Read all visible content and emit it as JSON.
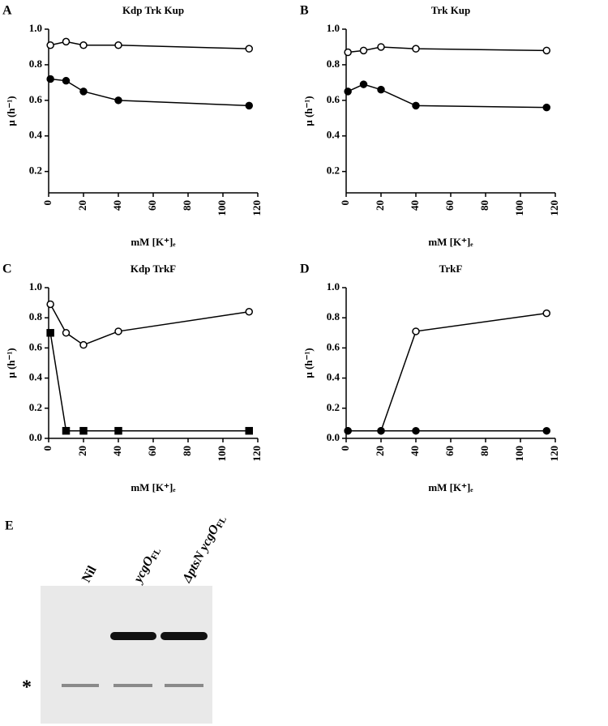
{
  "chart_data": [
    {
      "type": "line",
      "panel": "A",
      "title": "Kdp Trk Kup",
      "xlabel": "mM [K⁺]ₑ",
      "ylabel": "μ (h⁻¹)",
      "xlim": [
        0,
        120
      ],
      "xticks": [
        0,
        20,
        40,
        60,
        80,
        100,
        120
      ],
      "ylim": [
        0.08,
        1.0
      ],
      "yticks": [
        0.2,
        0.4,
        0.6,
        0.8,
        {
          "value": 1,
          "label": "1.0"
        }
      ],
      "series": [
        {
          "color": "#000000",
          "marker": "open-circle",
          "x": [
            1,
            10,
            20,
            40,
            115
          ],
          "values": [
            0.91,
            0.93,
            0.91,
            0.91,
            0.89
          ]
        },
        {
          "color": "#000000",
          "marker": "circle",
          "x": [
            1,
            10,
            20,
            40,
            115
          ],
          "values": [
            0.72,
            0.71,
            0.65,
            0.6,
            0.57
          ]
        }
      ]
    },
    {
      "type": "line",
      "panel": "B",
      "title": "Trk Kup",
      "xlabel": "mM [K⁺]ₑ",
      "ylabel": "μ (h⁻¹)",
      "xlim": [
        0,
        120
      ],
      "xticks": [
        0,
        20,
        40,
        60,
        80,
        100,
        120
      ],
      "ylim": [
        0.08,
        1.0
      ],
      "yticks": [
        0.2,
        0.4,
        0.6,
        0.8,
        {
          "value": 1,
          "label": "1.0"
        }
      ],
      "series": [
        {
          "color": "#000000",
          "marker": "open-circle",
          "x": [
            1,
            10,
            20,
            40,
            115
          ],
          "values": [
            0.87,
            0.88,
            0.9,
            0.89,
            0.88
          ]
        },
        {
          "color": "#000000",
          "marker": "circle",
          "x": [
            1,
            10,
            20,
            40,
            115
          ],
          "values": [
            0.65,
            0.69,
            0.66,
            0.57,
            0.56
          ]
        }
      ]
    },
    {
      "type": "line",
      "panel": "C",
      "title": "Kdp TrkF",
      "xlabel": "mM [K⁺]ₑ",
      "ylabel": "μ (h⁻¹)",
      "xlim": [
        0,
        120
      ],
      "xticks": [
        0,
        20,
        40,
        60,
        80,
        100,
        120
      ],
      "ylim": [
        0,
        1.0
      ],
      "yticks": [
        {
          "value": 0,
          "label": "0.0"
        },
        0.2,
        0.4,
        0.6,
        0.8,
        {
          "value": 1,
          "label": "1.0"
        }
      ],
      "series": [
        {
          "color": "#000000",
          "marker": "open-circle",
          "x": [
            1,
            10,
            20,
            40,
            115
          ],
          "values": [
            0.89,
            0.7,
            0.62,
            0.71,
            0.84
          ]
        },
        {
          "color": "#000000",
          "marker": "square",
          "x": [
            1,
            10,
            20,
            40,
            115
          ],
          "values": [
            0.7,
            0.05,
            0.05,
            0.05,
            0.05
          ]
        }
      ]
    },
    {
      "type": "line",
      "panel": "D",
      "title": "TrkF",
      "xlabel": "mM [K⁺]ₑ",
      "ylabel": "μ (h⁻¹)",
      "xlim": [
        0,
        120
      ],
      "xticks": [
        0,
        20,
        40,
        60,
        80,
        100,
        120
      ],
      "ylim": [
        0,
        1.0
      ],
      "yticks": [
        {
          "value": 0,
          "label": "0.0"
        },
        0.2,
        0.4,
        0.6,
        0.8,
        {
          "value": 1,
          "label": "1.0"
        }
      ],
      "series": [
        {
          "color": "#000000",
          "marker": "open-circle",
          "x": [
            1,
            20,
            40,
            115
          ],
          "values": [
            0.05,
            0.05,
            0.71,
            0.83
          ]
        },
        {
          "color": "#000000",
          "marker": "circle",
          "x": [
            1,
            20,
            40,
            115
          ],
          "values": [
            0.05,
            0.05,
            0.05,
            0.05
          ]
        }
      ]
    }
  ],
  "gel": {
    "panel": "E",
    "band_marker": "*",
    "lanes": [
      {
        "text": "Nil"
      },
      {
        "text": "ycgO",
        "sub": "FL"
      },
      {
        "text": "ΔptsN ycgO",
        "sub": "FL"
      }
    ]
  }
}
